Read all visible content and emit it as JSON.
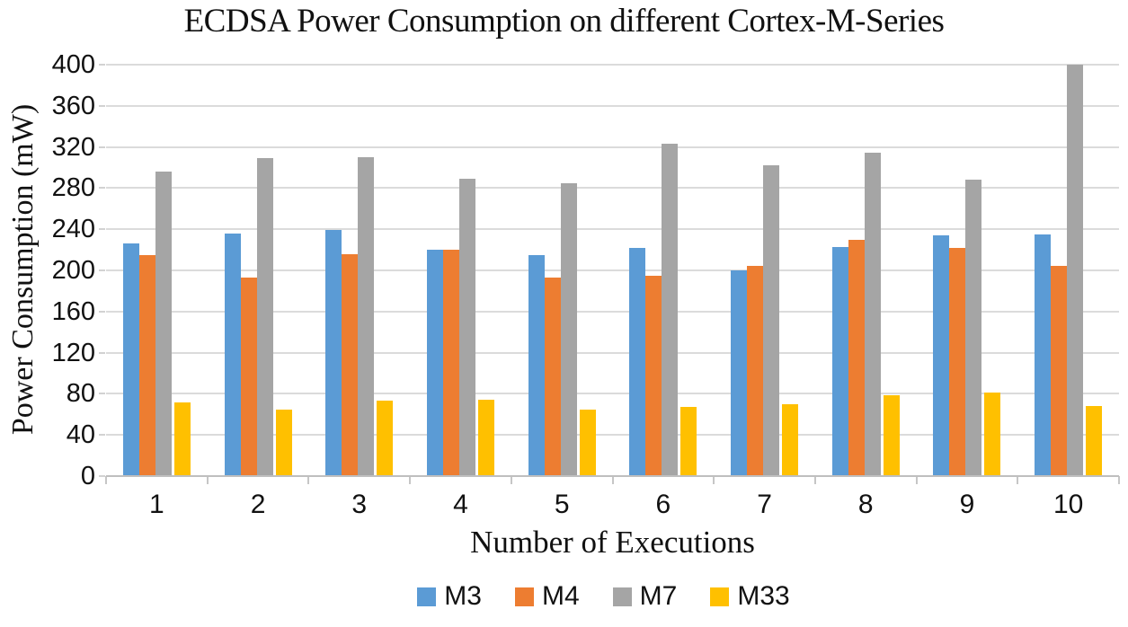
{
  "page": {
    "background": "#ffffff",
    "text_color": "#111111"
  },
  "chart_data": {
    "type": "bar",
    "title": "ECDSA Power Consumption on different Cortex-M-Series",
    "xlabel": "Number of Executions",
    "ylabel": "Power Consumption (mW)",
    "categories": [
      "1",
      "2",
      "3",
      "4",
      "5",
      "6",
      "7",
      "8",
      "9",
      "10"
    ],
    "series": [
      {
        "name": "M3",
        "color": "#5B9BD5",
        "values": [
          226,
          236,
          239,
          220,
          215,
          222,
          200,
          223,
          234,
          235
        ]
      },
      {
        "name": "M4",
        "color": "#ED7D31",
        "values": [
          215,
          193,
          216,
          220,
          193,
          195,
          204,
          230,
          222,
          204
        ]
      },
      {
        "name": "M7",
        "color": "#A5A5A5",
        "values": [
          296,
          309,
          310,
          289,
          285,
          323,
          302,
          314,
          288,
          400
        ]
      },
      {
        "name": "M33",
        "color": "#FFC000",
        "values": [
          72,
          65,
          73,
          74,
          65,
          67,
          70,
          79,
          81,
          68
        ]
      }
    ],
    "ylim": [
      0,
      400
    ],
    "yticks": [
      0,
      40,
      80,
      120,
      160,
      200,
      240,
      280,
      320,
      360,
      400
    ],
    "grid": true,
    "gridline_color": "#DBDBDB",
    "axis_line_color": "#BFBFBF",
    "legend_position": "bottom"
  }
}
